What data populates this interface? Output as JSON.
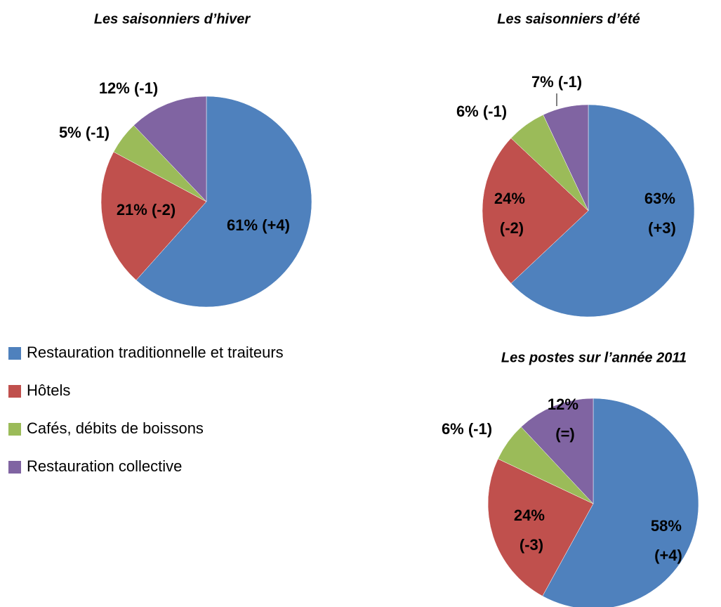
{
  "chart_data": [
    {
      "type": "pie",
      "title": "Les saisonniers d’hiver",
      "categories": [
        "Restauration traditionnelle et traiteurs",
        "Hôtels",
        "Cafés, débits de boissons",
        "Restauration collective"
      ],
      "values": [
        61,
        21,
        5,
        12
      ],
      "value_labels": [
        "61% (+4)",
        "21% (-2)",
        "5% (-1)",
        "12% (-1)"
      ],
      "colors": [
        "#4f81bd",
        "#c0504d",
        "#9bbb59",
        "#8064a2"
      ],
      "legend": "left"
    },
    {
      "type": "pie",
      "title": "Les saisonniers d’été",
      "categories": [
        "Restauration traditionnelle et traiteurs",
        "Hôtels",
        "Cafés, débits de boissons",
        "Restauration collective"
      ],
      "values": [
        63,
        24,
        6,
        7
      ],
      "value_labels": [
        "63% (+3)",
        "24% (-2)",
        "6% (-1)",
        "7% (-1)"
      ],
      "colors": [
        "#4f81bd",
        "#c0504d",
        "#9bbb59",
        "#8064a2"
      ]
    },
    {
      "type": "pie",
      "title": "Les postes sur l’année 2011",
      "categories": [
        "Restauration traditionnelle et traiteurs",
        "Hôtels",
        "Cafés, débits de boissons",
        "Restauration collective"
      ],
      "values": [
        58,
        24,
        6,
        12
      ],
      "value_labels": [
        "58% (+4)",
        "24% (-3)",
        "6% (-1)",
        "12% (=)"
      ],
      "colors": [
        "#4f81bd",
        "#c0504d",
        "#9bbb59",
        "#8064a2"
      ]
    }
  ]
}
